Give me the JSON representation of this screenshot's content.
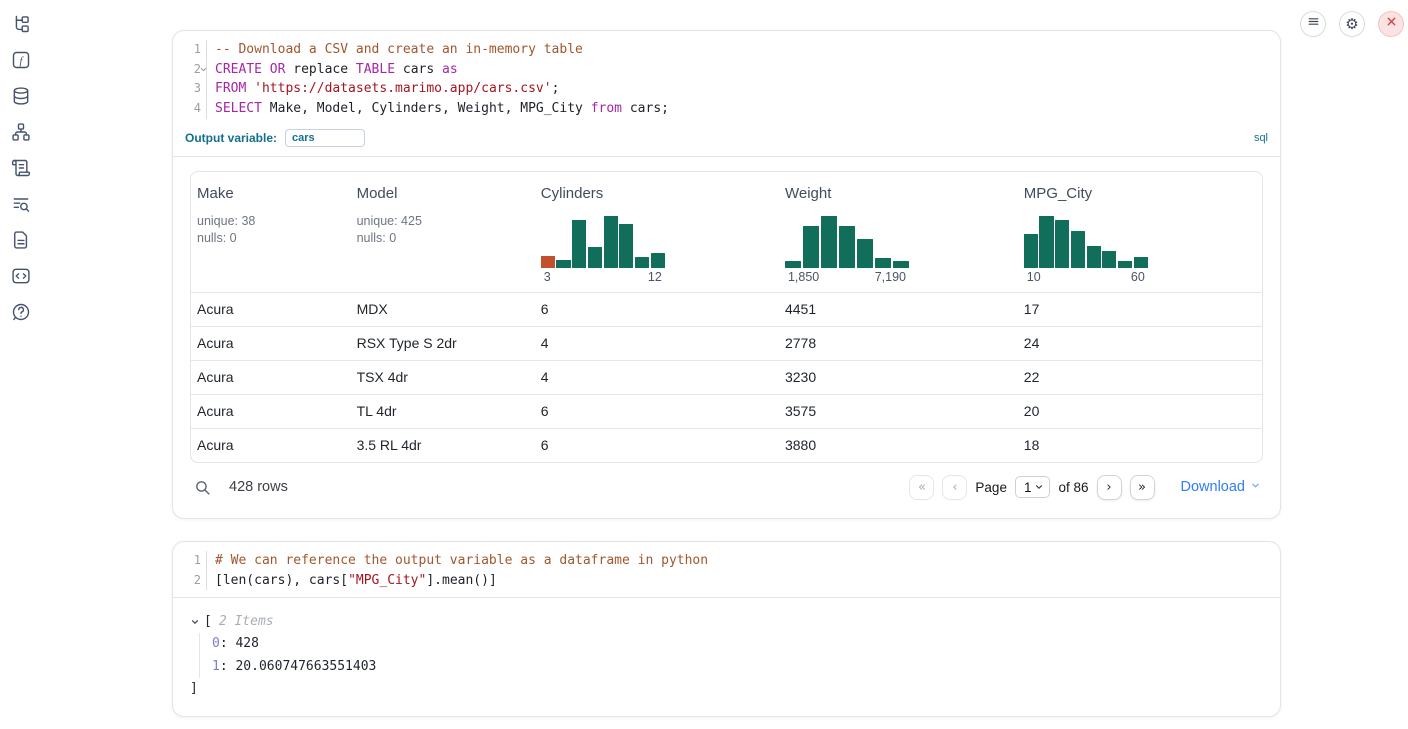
{
  "colors": {
    "accent_blue": "#14708f",
    "link_blue": "#2f7cf6",
    "histogram_teal": "#116e5a",
    "histogram_orange": "#c0512c",
    "keyword": "#a626a4",
    "string": "#a31621",
    "comment": "#a0572e",
    "close_button_red": "#d93b3b"
  },
  "sidebar": {
    "icons": [
      {
        "name": "file-tree-icon"
      },
      {
        "name": "function-icon"
      },
      {
        "name": "database-icon"
      },
      {
        "name": "dependency-graph-icon"
      },
      {
        "name": "scroll-icon"
      },
      {
        "name": "search-list-icon"
      },
      {
        "name": "document-icon"
      },
      {
        "name": "code-snippets-icon"
      },
      {
        "name": "help-icon"
      }
    ]
  },
  "topbar": {
    "buttons": [
      {
        "name": "menu-button",
        "icon": "hamburger-icon"
      },
      {
        "name": "settings-button",
        "icon": "gear-icon"
      },
      {
        "name": "shutdown-button",
        "icon": "close-icon"
      }
    ]
  },
  "sql_cell": {
    "line_numbers": [
      "1",
      "2",
      "3",
      "4"
    ],
    "folded_line_index": 1,
    "code_lines": [
      [
        {
          "t": "comment",
          "v": "-- Download a CSV and create an in-memory table"
        }
      ],
      [
        {
          "t": "keyword",
          "v": "CREATE"
        },
        {
          "t": "plain",
          "v": " "
        },
        {
          "t": "keyword",
          "v": "OR"
        },
        {
          "t": "plain",
          "v": " replace "
        },
        {
          "t": "keyword",
          "v": "TABLE"
        },
        {
          "t": "plain",
          "v": " cars "
        },
        {
          "t": "keyword",
          "v": "as"
        }
      ],
      [
        {
          "t": "keyword",
          "v": "FROM"
        },
        {
          "t": "plain",
          "v": " "
        },
        {
          "t": "string",
          "v": "'https://datasets.marimo.app/cars.csv'"
        },
        {
          "t": "plain",
          "v": ";"
        }
      ],
      [
        {
          "t": "keyword",
          "v": "SELECT"
        },
        {
          "t": "plain",
          "v": " Make, Model, Cylinders, Weight, MPG_City "
        },
        {
          "t": "keyword",
          "v": "from"
        },
        {
          "t": "plain",
          "v": " cars;"
        }
      ]
    ],
    "output_variable_label": "Output variable:",
    "output_variable_value": "cars",
    "language_badge": "sql"
  },
  "table": {
    "columns": [
      {
        "name": "Make",
        "stats": [
          "unique: 38",
          "nulls: 0"
        ]
      },
      {
        "name": "Model",
        "stats": [
          "unique: 425",
          "nulls: 0"
        ]
      },
      {
        "name": "Cylinders",
        "histogram": {
          "heights": [
            0.23,
            0.15,
            0.93,
            0.4,
            1.0,
            0.85,
            0.22,
            0.28
          ],
          "highlight_index": 0,
          "min_label": "3",
          "max_label": "12"
        }
      },
      {
        "name": "Weight",
        "histogram": {
          "heights": [
            0.13,
            0.8,
            1.0,
            0.8,
            0.55,
            0.19,
            0.13
          ],
          "highlight_index": -1,
          "min_label": "1,850",
          "max_label": "7,190"
        }
      },
      {
        "name": "MPG_City",
        "histogram": {
          "heights": [
            0.65,
            1.0,
            0.93,
            0.72,
            0.42,
            0.33,
            0.14,
            0.22
          ],
          "highlight_index": -1,
          "min_label": "10",
          "max_label": "60"
        }
      }
    ],
    "rows": [
      [
        "Acura",
        "MDX",
        "6",
        "4451",
        "17"
      ],
      [
        "Acura",
        "RSX Type S 2dr",
        "4",
        "2778",
        "24"
      ],
      [
        "Acura",
        "TSX 4dr",
        "4",
        "3230",
        "22"
      ],
      [
        "Acura",
        "TL 4dr",
        "6",
        "3575",
        "20"
      ],
      [
        "Acura",
        "3.5 RL 4dr",
        "6",
        "3880",
        "18"
      ]
    ],
    "footer": {
      "row_count": "428 rows",
      "page_label": "Page",
      "page_value": "1",
      "of_label": "of 86",
      "download_label": "Download"
    }
  },
  "python_cell": {
    "line_numbers": [
      "1",
      "2"
    ],
    "code_lines": [
      [
        {
          "t": "comment",
          "v": "# We can reference the output variable as a dataframe in python"
        }
      ],
      [
        {
          "t": "plain",
          "v": "[len(cars), cars["
        },
        {
          "t": "string",
          "v": "\"MPG_City\""
        },
        {
          "t": "plain",
          "v": "].mean()]"
        }
      ]
    ]
  },
  "output_tree": {
    "open_bracket": "[",
    "items_label": "2 Items",
    "entries": [
      {
        "key": "0",
        "value": "428"
      },
      {
        "key": "1",
        "value": "20.060747663551403"
      }
    ],
    "close_bracket": "]"
  }
}
